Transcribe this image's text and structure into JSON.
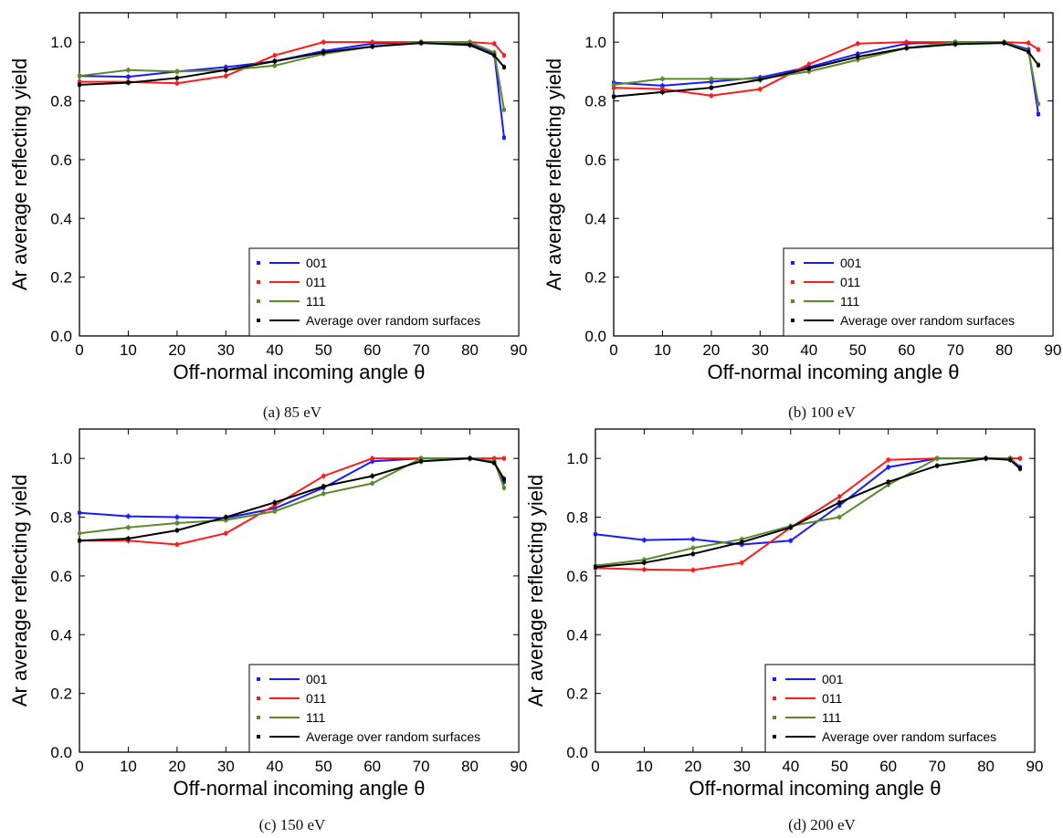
{
  "figure": {
    "colors": {
      "001": "#1a1aff",
      "011": "#ff1a1a",
      "111": "#5a8a28",
      "avg": "#000000"
    }
  },
  "chart_data": [
    {
      "type": "line",
      "caption": "(a) 85 eV",
      "xlabel": "Off-normal incoming angle θ",
      "ylabel": "Ar average reflecting yield",
      "xlim": [
        0,
        90
      ],
      "ylim": [
        0,
        1.1
      ],
      "xticks": [
        0,
        10,
        20,
        30,
        40,
        50,
        60,
        70,
        80,
        90
      ],
      "yticks": [
        0.0,
        0.2,
        0.4,
        0.6,
        0.8,
        1.0
      ],
      "yticklabels": [
        "0.0",
        "0.2",
        "0.4",
        "0.6",
        "0.8",
        "1.0"
      ],
      "legend_position": "bottom-right",
      "x": [
        0,
        10,
        20,
        30,
        40,
        50,
        60,
        70,
        80,
        85,
        87
      ],
      "series": [
        {
          "name": "001",
          "key": "001",
          "values": [
            0.885,
            0.882,
            0.9,
            0.915,
            0.935,
            0.97,
            0.995,
            1.0,
            0.995,
            0.96,
            0.675
          ]
        },
        {
          "name": "011",
          "key": "011",
          "values": [
            0.865,
            0.865,
            0.86,
            0.885,
            0.955,
            1.0,
            1.0,
            1.0,
            1.0,
            0.995,
            0.955
          ]
        },
        {
          "name": "111",
          "key": "111",
          "values": [
            0.885,
            0.905,
            0.9,
            0.905,
            0.92,
            0.96,
            0.985,
            1.0,
            1.0,
            0.965,
            0.77
          ]
        },
        {
          "name": "Average over random surfaces",
          "key": "avg",
          "values": [
            0.855,
            0.862,
            0.878,
            0.905,
            0.935,
            0.965,
            0.985,
            0.997,
            0.99,
            0.955,
            0.915
          ]
        }
      ]
    },
    {
      "type": "line",
      "caption": "(b) 100 eV",
      "xlabel": "Off-normal incoming angle θ",
      "ylabel": "Ar average reflecting yield",
      "xlim": [
        0,
        90
      ],
      "ylim": [
        0,
        1.1
      ],
      "xticks": [
        0,
        10,
        20,
        30,
        40,
        50,
        60,
        70,
        80,
        90
      ],
      "yticks": [
        0.0,
        0.2,
        0.4,
        0.6,
        0.8,
        1.0
      ],
      "yticklabels": [
        "0.0",
        "0.2",
        "0.4",
        "0.6",
        "0.8",
        "1.0"
      ],
      "legend_position": "bottom-right",
      "x": [
        0,
        10,
        20,
        30,
        40,
        50,
        60,
        70,
        80,
        85,
        87
      ],
      "series": [
        {
          "name": "001",
          "key": "001",
          "values": [
            0.862,
            0.852,
            0.865,
            0.88,
            0.915,
            0.96,
            0.995,
            1.0,
            1.0,
            0.975,
            0.755
          ]
        },
        {
          "name": "011",
          "key": "011",
          "values": [
            0.845,
            0.84,
            0.818,
            0.84,
            0.925,
            0.995,
            1.0,
            1.0,
            1.0,
            0.997,
            0.975
          ]
        },
        {
          "name": "111",
          "key": "111",
          "values": [
            0.855,
            0.875,
            0.875,
            0.875,
            0.9,
            0.94,
            0.98,
            1.0,
            1.0,
            0.97,
            0.79
          ]
        },
        {
          "name": "Average over random surfaces",
          "key": "avg",
          "values": [
            0.815,
            0.83,
            0.845,
            0.872,
            0.91,
            0.95,
            0.98,
            0.993,
            0.997,
            0.967,
            0.922
          ]
        }
      ]
    },
    {
      "type": "line",
      "caption": "(c) 150 eV",
      "xlabel": "Off-normal incoming angle θ",
      "ylabel": "Ar average reflecting yield",
      "xlim": [
        0,
        90
      ],
      "ylim": [
        0,
        1.1
      ],
      "xticks": [
        0,
        10,
        20,
        30,
        40,
        50,
        60,
        70,
        80,
        90
      ],
      "yticks": [
        0.0,
        0.2,
        0.4,
        0.6,
        0.8,
        1.0
      ],
      "yticklabels": [
        "0.0",
        "0.2",
        "0.4",
        "0.6",
        "0.8",
        "1.0"
      ],
      "legend_position": "bottom-right",
      "x": [
        0,
        10,
        20,
        30,
        40,
        50,
        60,
        70,
        80,
        85,
        87
      ],
      "series": [
        {
          "name": "001",
          "key": "001",
          "values": [
            0.815,
            0.803,
            0.8,
            0.797,
            0.83,
            0.9,
            0.99,
            1.0,
            1.0,
            0.985,
            0.92
          ]
        },
        {
          "name": "011",
          "key": "011",
          "values": [
            0.72,
            0.72,
            0.707,
            0.745,
            0.84,
            0.94,
            1.0,
            1.0,
            1.0,
            1.0,
            1.0
          ]
        },
        {
          "name": "111",
          "key": "111",
          "values": [
            0.745,
            0.765,
            0.78,
            0.79,
            0.82,
            0.88,
            0.915,
            1.0,
            1.0,
            0.99,
            0.9
          ]
        },
        {
          "name": "Average over random surfaces",
          "key": "avg",
          "values": [
            0.72,
            0.727,
            0.755,
            0.8,
            0.85,
            0.905,
            0.94,
            0.99,
            1.0,
            0.985,
            0.93
          ]
        }
      ]
    },
    {
      "type": "line",
      "caption": "(d) 200 eV",
      "xlabel": "Off-normal incoming angle θ",
      "ylabel": "Ar average reflecting yield",
      "xlim": [
        0,
        90
      ],
      "ylim": [
        0,
        1.1
      ],
      "xticks": [
        0,
        10,
        20,
        30,
        40,
        50,
        60,
        70,
        80,
        90
      ],
      "yticks": [
        0.0,
        0.2,
        0.4,
        0.6,
        0.8,
        1.0
      ],
      "yticklabels": [
        "0.0",
        "0.2",
        "0.4",
        "0.6",
        "0.8",
        "1.0"
      ],
      "legend_position": "bottom-right",
      "x": [
        0,
        10,
        20,
        30,
        40,
        50,
        60,
        70,
        80,
        85,
        87
      ],
      "series": [
        {
          "name": "001",
          "key": "001",
          "values": [
            0.742,
            0.722,
            0.725,
            0.707,
            0.72,
            0.84,
            0.97,
            1.0,
            1.0,
            1.0,
            0.97
          ]
        },
        {
          "name": "011",
          "key": "011",
          "values": [
            0.627,
            0.622,
            0.62,
            0.645,
            0.765,
            0.87,
            0.995,
            1.0,
            1.0,
            1.0,
            1.0
          ]
        },
        {
          "name": "111",
          "key": "111",
          "values": [
            0.635,
            0.655,
            0.695,
            0.725,
            0.77,
            0.8,
            0.91,
            1.0,
            1.0,
            1.0,
            0.965
          ]
        },
        {
          "name": "Average over random surfaces",
          "key": "avg",
          "values": [
            0.63,
            0.645,
            0.675,
            0.715,
            0.765,
            0.85,
            0.92,
            0.975,
            1.0,
            0.995,
            0.965
          ]
        }
      ]
    }
  ]
}
